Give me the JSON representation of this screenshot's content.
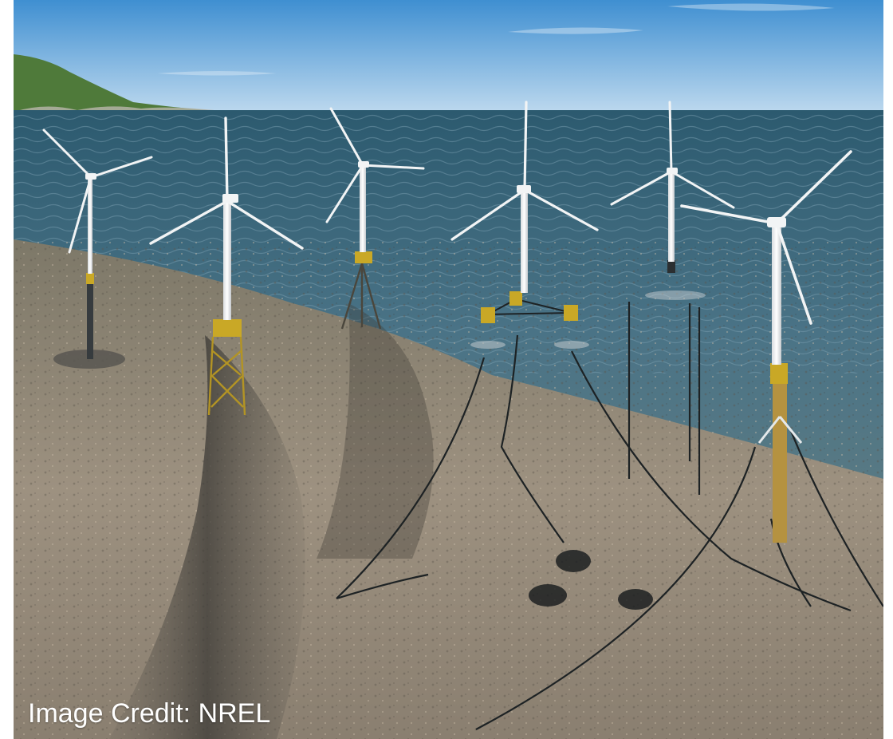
{
  "image": {
    "credit_text": "Image Credit: NREL"
  },
  "colors": {
    "sky_top": "#3f8fd1",
    "sky_horizon": "#bcd8ee",
    "sea_surface": "#4a7386",
    "sea_deep": "#264a5b",
    "seabed_light": "#9d9180",
    "seabed_dark": "#4f4a43",
    "turbine_white": "#f2f4f5",
    "foundation_yellow": "#c9a826",
    "mooring_line": "#1d2224",
    "hill_green": "#4f7a3a"
  },
  "icons": [
    "wind-turbine-icon"
  ]
}
